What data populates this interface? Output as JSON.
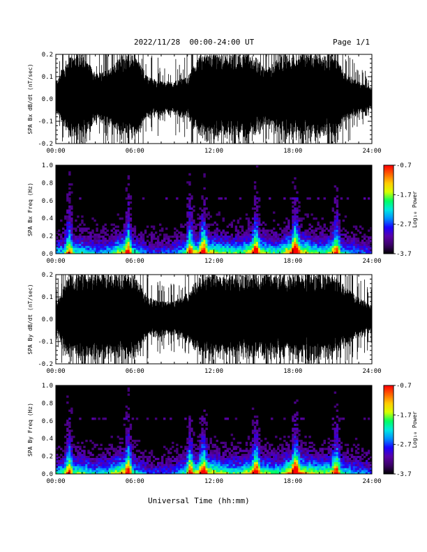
{
  "header": {
    "title": "2022/11/28  00:00-24:00 UT",
    "page": "Page 1/1"
  },
  "x_axis_title": "Universal Time (hh:mm)",
  "colors": {
    "trace": "#000000",
    "spectrogram_background": "#000000",
    "colormap": [
      "#000000",
      "#3a0066",
      "#5a00a8",
      "#1a00ff",
      "#0090ff",
      "#00e8e0",
      "#00ff60",
      "#d8ff00",
      "#ffcc00",
      "#ff6600",
      "#ff0000"
    ]
  },
  "chart_data": [
    {
      "type": "line",
      "id": "panel1",
      "ylabel": "SPA Bx dB/dt (nT/sec)",
      "ylim": [
        -0.2,
        0.2
      ],
      "xlim": [
        0,
        24
      ],
      "x_ticks": [
        "00:00",
        "06:00",
        "12:00",
        "18:00",
        "24:00"
      ],
      "y_ticks": [
        "0.2",
        "0.1",
        "0.0",
        "-0.1",
        "-0.2"
      ],
      "y_tick_values": [
        0.2,
        0.1,
        0.0,
        -0.1,
        -0.2
      ],
      "series": [
        {
          "x": [
            0,
            1,
            2,
            3,
            4,
            5,
            6,
            7,
            8,
            9,
            10,
            11,
            12,
            13,
            14,
            15,
            16,
            17,
            18,
            19,
            20,
            21,
            22,
            23,
            24
          ],
          "envelope": [
            0.08,
            0.2,
            0.2,
            0.12,
            0.13,
            0.2,
            0.2,
            0.1,
            0.08,
            0.08,
            0.1,
            0.2,
            0.2,
            0.2,
            0.2,
            0.2,
            0.13,
            0.2,
            0.2,
            0.2,
            0.2,
            0.2,
            0.12,
            0.08,
            0.05
          ]
        }
      ]
    },
    {
      "type": "heatmap",
      "id": "panel2",
      "ylabel": "SPA Bx Freq (Hz)",
      "ylim": [
        0,
        1.0
      ],
      "xlim": [
        0,
        24
      ],
      "x_ticks": [
        "00:00",
        "06:00",
        "12:00",
        "18:00",
        "24:00"
      ],
      "y_ticks": [
        "1.0",
        "0.8",
        "0.6",
        "0.4",
        "0.2",
        "0.0"
      ],
      "y_tick_values": [
        1.0,
        0.8,
        0.6,
        0.4,
        0.2,
        0.0
      ],
      "colorbar": {
        "label": "Log₁₀ Power",
        "range": [
          -3.7,
          -0.7
        ],
        "ticks": [
          "-0.7",
          "-1.7",
          "-2.7",
          "-3.7"
        ],
        "tick_values": [
          -0.7,
          -1.7,
          -2.7,
          -3.7
        ]
      },
      "activity": {
        "x": [
          0,
          1,
          2,
          3,
          4,
          5,
          6,
          7,
          8,
          9,
          10,
          11,
          12,
          13,
          14,
          15,
          16,
          17,
          18,
          19,
          20,
          21,
          22,
          23,
          24
        ],
        "level": [
          0.45,
          0.5,
          0.55,
          0.4,
          0.45,
          0.75,
          0.5,
          0.3,
          0.3,
          0.35,
          0.55,
          0.75,
          0.7,
          0.6,
          0.55,
          0.8,
          0.6,
          0.55,
          0.95,
          0.7,
          0.55,
          0.65,
          0.45,
          0.35,
          0.3
        ]
      },
      "bursts": [
        1,
        5.5,
        10.2,
        11.2,
        15.2,
        18.2,
        21.3
      ]
    },
    {
      "type": "line",
      "id": "panel3",
      "ylabel": "SPA By dB/dt (nT/sec)",
      "ylim": [
        -0.2,
        0.2
      ],
      "xlim": [
        0,
        24
      ],
      "x_ticks": [
        "00:00",
        "06:00",
        "12:00",
        "18:00",
        "24:00"
      ],
      "y_ticks": [
        "0.2",
        "0.1",
        "0.0",
        "-0.1",
        "-0.2"
      ],
      "y_tick_values": [
        0.2,
        0.1,
        0.0,
        -0.1,
        -0.2
      ],
      "series": [
        {
          "x": [
            0,
            1,
            2,
            3,
            4,
            5,
            6,
            7,
            8,
            9,
            10,
            11,
            12,
            13,
            14,
            15,
            16,
            17,
            18,
            19,
            20,
            21,
            22,
            23,
            24
          ],
          "envelope": [
            0.06,
            0.2,
            0.2,
            0.2,
            0.2,
            0.2,
            0.2,
            0.1,
            0.08,
            0.08,
            0.12,
            0.2,
            0.2,
            0.2,
            0.2,
            0.2,
            0.2,
            0.2,
            0.2,
            0.2,
            0.2,
            0.2,
            0.15,
            0.1,
            0.06
          ]
        }
      ]
    },
    {
      "type": "heatmap",
      "id": "panel4",
      "ylabel": "SPA By Freq (Hz)",
      "ylim": [
        0,
        1.0
      ],
      "xlim": [
        0,
        24
      ],
      "x_ticks": [
        "00:00",
        "06:00",
        "12:00",
        "18:00",
        "24:00"
      ],
      "y_ticks": [
        "1.0",
        "0.8",
        "0.6",
        "0.4",
        "0.2",
        "0.0"
      ],
      "y_tick_values": [
        1.0,
        0.8,
        0.6,
        0.4,
        0.2,
        0.0
      ],
      "colorbar": {
        "label": "Log₁₀ Power",
        "range": [
          -3.7,
          -0.7
        ],
        "ticks": [
          "-0.7",
          "-1.7",
          "-2.7",
          "-3.7"
        ],
        "tick_values": [
          -0.7,
          -1.7,
          -2.7,
          -3.7
        ]
      },
      "activity": {
        "x": [
          0,
          1,
          2,
          3,
          4,
          5,
          6,
          7,
          8,
          9,
          10,
          11,
          12,
          13,
          14,
          15,
          16,
          17,
          18,
          19,
          20,
          21,
          22,
          23,
          24
        ],
        "level": [
          0.5,
          0.55,
          0.6,
          0.45,
          0.5,
          0.8,
          0.5,
          0.3,
          0.3,
          0.35,
          0.55,
          0.75,
          0.7,
          0.6,
          0.55,
          0.8,
          0.6,
          0.55,
          0.95,
          0.75,
          0.6,
          0.7,
          0.5,
          0.4,
          0.35
        ]
      },
      "bursts": [
        1,
        5.5,
        10.2,
        11.2,
        15.2,
        18.2,
        21.3
      ]
    }
  ]
}
